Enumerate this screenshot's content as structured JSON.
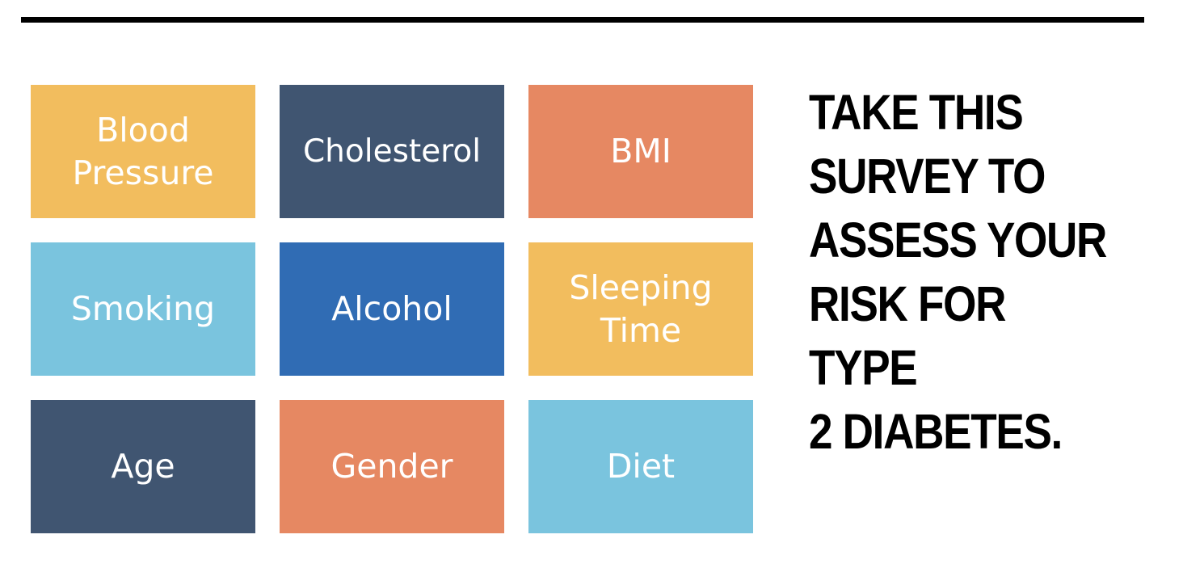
{
  "colors": {
    "yellow": "#F2BD5E",
    "slate": "#405571",
    "orange": "#E68862",
    "light_blue": "#7AC4DE",
    "blue": "#306CB4",
    "rule": "#000000",
    "headline": "#000000"
  },
  "tiles": [
    {
      "label": "Blood\nPressure",
      "color": "#F2BD5E"
    },
    {
      "label": "Cholesterol",
      "color": "#405571"
    },
    {
      "label": "BMI",
      "color": "#E68862"
    },
    {
      "label": "Smoking",
      "color": "#7AC4DE"
    },
    {
      "label": "Alcohol",
      "color": "#306CB4"
    },
    {
      "label": "Sleeping\nTime",
      "color": "#F2BD5E"
    },
    {
      "label": "Age",
      "color": "#405571"
    },
    {
      "label": "Gender",
      "color": "#E68862"
    },
    {
      "label": "Diet",
      "color": "#7AC4DE"
    }
  ],
  "headline": "TAKE THIS\nSURVEY TO\nASSESS YOUR\nRISK FOR TYPE\n2 DIABETES."
}
